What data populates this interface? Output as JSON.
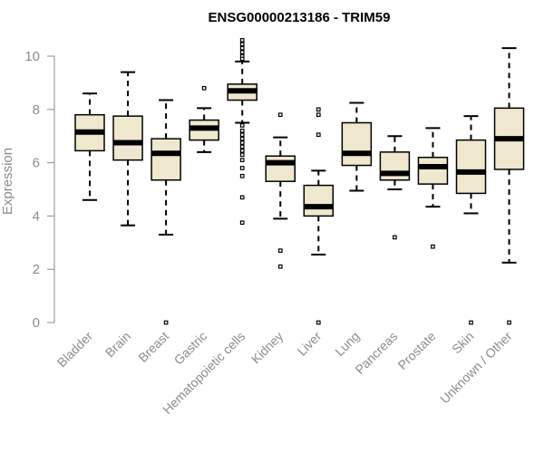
{
  "chart_data": {
    "type": "boxplot",
    "title": "ENSG00000213186 - TRIM59",
    "xlabel": "",
    "ylabel": "Expression",
    "ylim": [
      0,
      10.5
    ],
    "yticks": [
      0,
      2,
      4,
      6,
      8,
      10
    ],
    "box_color": "#efe8cf",
    "categories": [
      "Bladder",
      "Brain",
      "Breast",
      "Gastric",
      "Hematopoietic cells",
      "Kidney",
      "Liver",
      "Lung",
      "Pancreas",
      "Prostate",
      "Skin",
      "Unknown / Other"
    ],
    "boxes": [
      {
        "name": "Bladder",
        "whisker_low": 4.6,
        "q1": 6.45,
        "median": 7.15,
        "q3": 7.8,
        "whisker_high": 8.6,
        "outliers": []
      },
      {
        "name": "Brain",
        "whisker_low": 3.65,
        "q1": 6.1,
        "median": 6.75,
        "q3": 7.75,
        "whisker_high": 9.4,
        "outliers": []
      },
      {
        "name": "Breast",
        "whisker_low": 3.3,
        "q1": 5.35,
        "median": 6.35,
        "q3": 6.9,
        "whisker_high": 8.35,
        "outliers": [
          0
        ]
      },
      {
        "name": "Gastric",
        "whisker_low": 6.4,
        "q1": 6.85,
        "median": 7.3,
        "q3": 7.6,
        "whisker_high": 8.05,
        "outliers": [
          8.8
        ]
      },
      {
        "name": "Hematopoietic cells",
        "whisker_low": 7.5,
        "q1": 8.35,
        "median": 8.7,
        "q3": 8.95,
        "whisker_high": 9.8,
        "outliers": [
          10.6,
          10.45,
          10.3,
          10.15,
          10.0,
          9.9,
          7.4,
          7.2,
          7.05,
          6.9,
          6.75,
          6.6,
          6.45,
          6.3,
          6.1,
          5.8,
          5.5,
          4.7,
          3.75
        ]
      },
      {
        "name": "Kidney",
        "whisker_low": 3.9,
        "q1": 5.3,
        "median": 6.0,
        "q3": 6.25,
        "whisker_high": 6.95,
        "outliers": [
          7.8,
          2.7,
          2.1
        ]
      },
      {
        "name": "Liver",
        "whisker_low": 2.55,
        "q1": 4.0,
        "median": 4.35,
        "q3": 5.15,
        "whisker_high": 5.7,
        "outliers": [
          8.0,
          7.8,
          7.05,
          0
        ]
      },
      {
        "name": "Lung",
        "whisker_low": 4.95,
        "q1": 5.9,
        "median": 6.35,
        "q3": 7.5,
        "whisker_high": 8.25,
        "outliers": []
      },
      {
        "name": "Pancreas",
        "whisker_low": 5.0,
        "q1": 5.35,
        "median": 5.6,
        "q3": 6.4,
        "whisker_high": 7.0,
        "outliers": [
          3.2
        ]
      },
      {
        "name": "Prostate",
        "whisker_low": 4.35,
        "q1": 5.2,
        "median": 5.85,
        "q3": 6.2,
        "whisker_high": 7.3,
        "outliers": [
          2.85
        ]
      },
      {
        "name": "Skin",
        "whisker_low": 4.1,
        "q1": 4.85,
        "median": 5.65,
        "q3": 6.85,
        "whisker_high": 7.75,
        "outliers": [
          0
        ]
      },
      {
        "name": "Unknown / Other",
        "whisker_low": 2.25,
        "q1": 5.75,
        "median": 6.9,
        "q3": 8.05,
        "whisker_high": 10.3,
        "outliers": [
          0
        ]
      }
    ]
  }
}
